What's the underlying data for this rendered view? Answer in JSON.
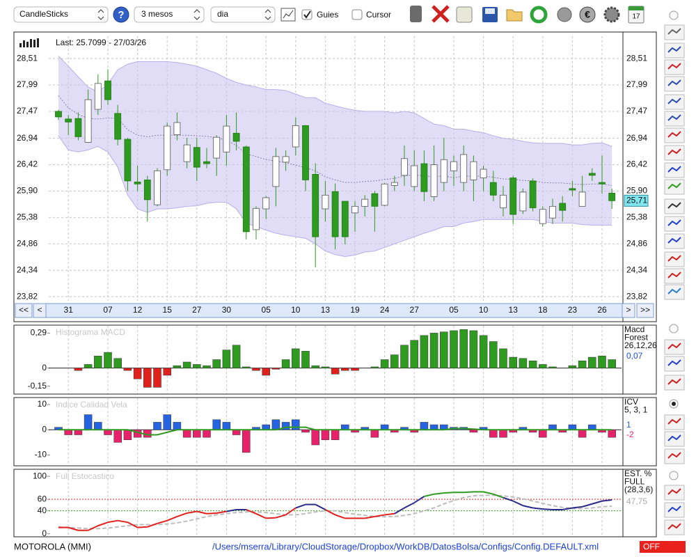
{
  "toolbar": {
    "chart_type": "CandleSticks",
    "period": "3 mesos",
    "interval": "dia",
    "guides_label": "Guies",
    "guides_checked": true,
    "cursor_label": "Cursor",
    "cursor_checked": false
  },
  "navigation": {
    "first": "<<",
    "prev": "<",
    "next": ">",
    "last": ">>"
  },
  "chart_data": [
    {
      "type": "candlestick",
      "title": "Last: 25.7099 - 27/03/26",
      "categories": [
        null,
        "31",
        null,
        null,
        null,
        "07",
        null,
        null,
        "12",
        null,
        null,
        "15",
        null,
        null,
        "27",
        null,
        null,
        "30",
        null,
        null,
        null,
        "05",
        null,
        null,
        "10",
        null,
        null,
        "13",
        null,
        null,
        "19",
        null,
        null,
        "24",
        null,
        null,
        "27",
        null,
        null,
        null,
        "05",
        null,
        null,
        "10",
        null,
        null,
        "13",
        null,
        null,
        "18",
        null,
        null,
        "23",
        null,
        null,
        "26",
        null
      ],
      "open": [
        27.47,
        27.32,
        27.33,
        26.86,
        27.51,
        28.07,
        27.43,
        26.92,
        26.08,
        26.12,
        25.63,
        26.32,
        27.01,
        26.48,
        26.76,
        26.48,
        26.55,
        26.67,
        27.04,
        26.77,
        25.14,
        25.55,
        25.99,
        26.47,
        26.77,
        27.19,
        26.23,
        25.55,
        25.89,
        25.7,
        25.47,
        25.6,
        25.85,
        25.62,
        26.01,
        26.21,
        25.99,
        26.44,
        25.79,
        26.07,
        26.3,
        26.07,
        26.12,
        26.16,
        26.07,
        25.57,
        26.16,
        25.51,
        26.1,
        25.26,
        25.37,
        25.66,
        25.95,
        25.6,
        26.25,
        26.07,
        25.86
      ],
      "high": [
        27.5,
        27.4,
        27.45,
        27.9,
        28.2,
        28.3,
        27.6,
        26.95,
        26.4,
        26.2,
        26.35,
        27.25,
        27.45,
        26.95,
        26.95,
        26.75,
        27.0,
        27.4,
        27.45,
        26.8,
        25.6,
        25.8,
        26.75,
        26.7,
        27.35,
        27.2,
        26.45,
        26.1,
        26.05,
        25.7,
        25.7,
        25.82,
        25.9,
        26.06,
        26.2,
        26.8,
        26.7,
        26.7,
        26.8,
        26.95,
        26.6,
        26.8,
        26.6,
        26.4,
        26.3,
        26.0,
        26.2,
        25.95,
        26.15,
        25.6,
        25.75,
        25.8,
        26.1,
        26.2,
        26.35,
        26.6,
        25.95
      ],
      "low": [
        27.3,
        27.0,
        26.9,
        26.85,
        27.4,
        27.6,
        26.8,
        25.9,
        25.9,
        25.3,
        25.6,
        26.2,
        26.9,
        26.35,
        26.1,
        26.35,
        26.2,
        26.4,
        26.7,
        24.95,
        24.95,
        25.35,
        25.6,
        26.3,
        26.6,
        25.9,
        24.4,
        25.3,
        24.75,
        24.85,
        25.1,
        25.4,
        25.1,
        25.6,
        25.9,
        26.0,
        25.9,
        25.7,
        25.7,
        25.9,
        26.0,
        25.9,
        25.7,
        25.9,
        25.7,
        25.4,
        25.25,
        25.45,
        25.5,
        25.2,
        25.25,
        25.3,
        25.8,
        25.6,
        26.1,
        25.85,
        25.55
      ],
      "close": [
        27.36,
        27.26,
        26.97,
        27.7,
        28.02,
        27.7,
        26.92,
        26.1,
        26.04,
        25.73,
        26.3,
        27.18,
        27.25,
        26.81,
        26.37,
        26.44,
        26.96,
        27.18,
        26.88,
        25.1,
        25.56,
        25.77,
        26.58,
        26.58,
        27.19,
        26.12,
        25.0,
        25.82,
        25.0,
        25.0,
        25.6,
        25.74,
        25.6,
        26.04,
        26.07,
        26.54,
        26.4,
        25.89,
        26.42,
        26.52,
        26.48,
        26.62,
        26.48,
        26.33,
        25.82,
        25.82,
        25.44,
        25.88,
        25.57,
        25.54,
        25.6,
        25.52,
        25.92,
        25.88,
        26.21,
        26.04,
        25.71
      ],
      "bands": {
        "upper": [
          28.56,
          28.36,
          28.15,
          27.95,
          27.85,
          28.01,
          28.29,
          28.4,
          28.45,
          28.45,
          28.45,
          28.45,
          28.43,
          28.4,
          28.36,
          28.29,
          28.22,
          28.12,
          28.04,
          27.99,
          27.95,
          27.9,
          27.9,
          27.88,
          27.81,
          27.74,
          27.74,
          27.63,
          27.58,
          27.53,
          27.49,
          27.47,
          27.47,
          27.47,
          27.44,
          27.47,
          27.44,
          27.33,
          27.22,
          27.19,
          27.12,
          27.12,
          27.08,
          27.05,
          26.99,
          26.94,
          26.92,
          26.88,
          26.85,
          26.84,
          26.84,
          26.84,
          26.81,
          26.81,
          26.84,
          26.85,
          26.78
        ],
        "lower": [
          26.99,
          26.71,
          26.67,
          26.71,
          26.78,
          26.67,
          26.37,
          25.82,
          25.55,
          25.48,
          25.55,
          25.55,
          25.57,
          25.6,
          25.61,
          25.66,
          25.68,
          25.68,
          25.55,
          25.27,
          25.2,
          25.13,
          25.07,
          25.03,
          25.0,
          24.97,
          24.86,
          24.72,
          24.65,
          24.61,
          24.64,
          24.7,
          24.72,
          24.79,
          24.86,
          24.93,
          25.0,
          25.07,
          25.13,
          25.2,
          25.2,
          25.27,
          25.3,
          25.34,
          25.34,
          25.34,
          25.34,
          25.34,
          25.34,
          25.3,
          25.27,
          25.27,
          25.27,
          25.24,
          25.23,
          25.23,
          25.23
        ],
        "middle": [
          27.78,
          27.54,
          27.41,
          27.33,
          27.32,
          27.34,
          27.33,
          27.11,
          27.0,
          26.97,
          27.0,
          27.0,
          27.0,
          27.0,
          26.99,
          26.98,
          26.95,
          26.9,
          26.8,
          26.63,
          26.58,
          26.52,
          26.49,
          26.46,
          26.41,
          26.36,
          26.3,
          26.18,
          26.12,
          26.07,
          26.07,
          26.09,
          26.1,
          26.13,
          26.15,
          26.2,
          26.22,
          26.2,
          26.18,
          26.2,
          26.16,
          26.2,
          26.19,
          26.2,
          26.17,
          26.14,
          26.13,
          26.11,
          26.1,
          26.07,
          26.06,
          26.06,
          26.04,
          26.03,
          26.04,
          26.04,
          26.01
        ],
        "color": "#cfc6f2"
      },
      "up_color": "#ffffff",
      "down_color": "#2e9a1f",
      "last_label": {
        "value": 25.71,
        "label": "25,71"
      },
      "ylim": [
        23.74,
        28.95
      ],
      "yticks": [
        {
          "value": 23.82,
          "label": "23,82"
        },
        {
          "value": 24.34,
          "label": "24,34"
        },
        {
          "value": 24.86,
          "label": "24,86"
        },
        {
          "value": 25.38,
          "label": "25,38"
        },
        {
          "value": 25.9,
          "label": "25,90"
        },
        {
          "value": 26.42,
          "label": "26,42"
        },
        {
          "value": 26.94,
          "label": "26,94"
        },
        {
          "value": 27.47,
          "label": "27,47"
        },
        {
          "value": 27.99,
          "label": "27,99"
        },
        {
          "value": 28.51,
          "label": "28,51"
        }
      ],
      "grid": true
    },
    {
      "type": "bar",
      "title": "Histograma MACD",
      "side_labels": [
        "Macd",
        "Forest",
        "26,12,26"
      ],
      "values": [
        0,
        0,
        -0.02,
        0.03,
        0.1,
        0.13,
        0.08,
        -0.02,
        -0.09,
        -0.16,
        -0.16,
        -0.06,
        0.02,
        0.05,
        0.03,
        0.02,
        0.07,
        0.15,
        0.19,
        0.01,
        -0.02,
        -0.06,
        -0.01,
        0.07,
        0.16,
        0.14,
        0.02,
        0.01,
        -0.05,
        -0.02,
        -0.02,
        0,
        0.01,
        0.07,
        0.11,
        0.19,
        0.23,
        0.27,
        0.29,
        0.3,
        0.31,
        0.32,
        0.31,
        0.27,
        0.22,
        0.16,
        0.09,
        0.08,
        0.06,
        0.03,
        0.01,
        0,
        0.02,
        0.06,
        0.09,
        0.1,
        0.07
      ],
      "pos_color": "#2e9a1f",
      "neg_color": "#e0201c",
      "current": {
        "value": 0.07,
        "label": "0,07"
      },
      "current_color": "#1a4fd6",
      "ylim": [
        -0.21,
        0.35
      ],
      "yticks": [
        {
          "value": -0.15,
          "label": "-0,15"
        },
        0,
        {
          "value": 0.29,
          "label": "0,29"
        }
      ]
    },
    {
      "type": "bar",
      "title": "Indice Calidad Vela",
      "side_labels": [
        "ICV",
        "5, 3, 1"
      ],
      "values": [
        1,
        -2,
        -2,
        6,
        3,
        -2,
        -5,
        -4,
        -3,
        -3,
        3,
        6,
        3,
        -3,
        -3,
        -3,
        4,
        3,
        -2,
        -9,
        1,
        2,
        4,
        3,
        4,
        -1,
        -6,
        -4,
        -4,
        2,
        -1,
        1,
        -3,
        2,
        -1,
        1,
        -1,
        3,
        2,
        2,
        1,
        1,
        -1,
        1,
        -3,
        -3,
        -1,
        1,
        -1,
        -3,
        2,
        -1,
        2,
        -3,
        2,
        -1,
        -3
      ],
      "line": [
        0,
        0,
        0,
        0,
        0,
        0,
        0,
        0,
        -1,
        -2,
        -2,
        -1,
        0,
        0,
        0,
        0,
        0,
        0,
        0,
        0,
        0,
        0,
        0,
        1,
        1,
        1,
        0,
        0,
        0,
        0,
        0,
        0,
        0,
        0,
        0,
        0,
        0,
        0,
        0,
        0,
        0.5,
        0.5,
        0.3,
        0,
        0,
        0,
        0,
        0,
        0,
        0,
        0,
        0,
        0,
        0,
        0,
        0,
        0
      ],
      "line_color": "#2e9a1f",
      "pos_color": "#2563e0",
      "neg_color": "#e8226a",
      "current_pos": 1,
      "current_neg": -2,
      "ylim": [
        -14,
        12.5
      ],
      "yticks": [
        -10,
        0,
        10
      ]
    },
    {
      "type": "stochastic",
      "title": "Full Estocastico",
      "side_labels": [
        "EST. %",
        "FULL",
        "(28,3,6)"
      ],
      "k": [
        11,
        11,
        6,
        6,
        14,
        20,
        23,
        20,
        11,
        12,
        18,
        23,
        30,
        36,
        39,
        35,
        36,
        39,
        42,
        42,
        35,
        27,
        28,
        33,
        45,
        51,
        51,
        42,
        33,
        27,
        27,
        27,
        30,
        33,
        35,
        45,
        54,
        65,
        69,
        71,
        72,
        72,
        73,
        73,
        69,
        63,
        57,
        49,
        45,
        43,
        42,
        42,
        45,
        47,
        52,
        57,
        59
      ],
      "d": [
        12,
        11,
        10,
        9,
        9,
        10,
        12,
        14,
        16,
        16,
        16,
        17,
        19,
        22,
        26,
        30,
        33,
        35,
        37,
        38,
        38,
        37,
        35,
        33,
        33,
        35,
        38,
        40,
        40,
        37,
        34,
        32,
        30,
        30,
        30,
        32,
        35,
        40,
        45,
        52,
        58,
        63,
        66,
        67,
        67,
        66,
        64,
        61,
        57,
        53,
        49,
        46,
        44,
        44,
        45,
        47,
        48
      ],
      "levels": [
        40,
        60
      ],
      "low_color": "#e0201c",
      "mid_color": "#2a2a8a",
      "high_color": "#2e9a1f",
      "d_color": "#bdbdbd",
      "current": {
        "value": 47.75,
        "label": "47,75"
      },
      "ylim": [
        -4,
        111
      ],
      "yticks": [
        0,
        40,
        60,
        100
      ]
    }
  ],
  "footer": {
    "symbol": "MOTOROLA (MMI)",
    "path": "/Users/mserra/Library/CloudStorage/Dropbox/WorkDB/DatosBolsa/Configs/Config.DEFAULT.xml",
    "status": "OFF"
  }
}
